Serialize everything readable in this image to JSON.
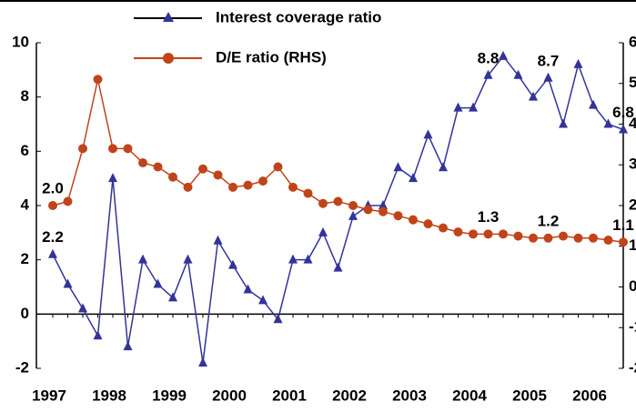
{
  "chart_data": {
    "type": "line",
    "categories": [
      "1997",
      null,
      null,
      null,
      "1998",
      null,
      null,
      null,
      "1999",
      null,
      null,
      null,
      "2000",
      null,
      null,
      null,
      "2001",
      null,
      null,
      null,
      "2002",
      null,
      null,
      null,
      "2003",
      null,
      null,
      null,
      "2004",
      null,
      null,
      null,
      "2005",
      null,
      null,
      null,
      "2006",
      null,
      null
    ],
    "series": [
      {
        "name": "Interest coverage ratio",
        "color": "#333399",
        "marker": "triangle",
        "values": [
          2.2,
          1.1,
          0.2,
          -0.8,
          5.0,
          -1.2,
          2.0,
          1.1,
          0.6,
          2.0,
          -1.8,
          2.7,
          1.8,
          0.9,
          0.5,
          -0.2,
          2.0,
          2.0,
          3.0,
          1.7,
          3.6,
          4.0,
          4.0,
          5.4,
          5.0,
          6.6,
          5.4,
          7.6,
          7.6,
          8.8,
          9.5,
          8.8,
          8.0,
          8.7,
          7.0,
          9.2,
          7.7,
          7.0,
          6.8
        ],
        "value_labels": [
          "2.2",
          null,
          null,
          null,
          null,
          null,
          null,
          null,
          null,
          null,
          null,
          null,
          null,
          null,
          null,
          null,
          null,
          null,
          null,
          null,
          null,
          null,
          null,
          null,
          null,
          null,
          null,
          null,
          null,
          "8.8",
          null,
          null,
          null,
          "8.7",
          null,
          null,
          null,
          null,
          "6.8"
        ]
      },
      {
        "name": "D/E ratio (RHS)",
        "color": "#c0441a",
        "marker": "circle",
        "axis": "y2",
        "values": [
          2.0,
          2.1,
          3.4,
          5.1,
          3.4,
          3.4,
          3.05,
          2.95,
          2.7,
          2.45,
          2.9,
          2.75,
          2.45,
          2.5,
          2.6,
          2.95,
          2.45,
          2.3,
          2.05,
          2.1,
          2.0,
          1.9,
          1.85,
          1.75,
          1.65,
          1.55,
          1.45,
          1.35,
          1.3,
          1.3,
          1.3,
          1.25,
          1.2,
          1.2,
          1.25,
          1.2,
          1.2,
          1.15,
          1.1
        ],
        "value_labels": [
          "2.0",
          null,
          null,
          null,
          null,
          null,
          null,
          null,
          null,
          null,
          null,
          null,
          null,
          null,
          null,
          null,
          null,
          null,
          null,
          null,
          null,
          null,
          null,
          null,
          null,
          null,
          null,
          null,
          null,
          "1.3",
          null,
          null,
          null,
          "1.2",
          null,
          null,
          null,
          null,
          "1.1"
        ]
      }
    ],
    "ylim": [
      -2,
      10
    ],
    "yticks": [
      -2,
      0,
      2,
      4,
      6,
      8,
      10
    ],
    "y2lim": [
      -2,
      6
    ],
    "y2ticks": [
      -2,
      -1,
      0,
      1,
      2,
      3,
      4,
      5,
      6
    ],
    "legend": "top"
  }
}
